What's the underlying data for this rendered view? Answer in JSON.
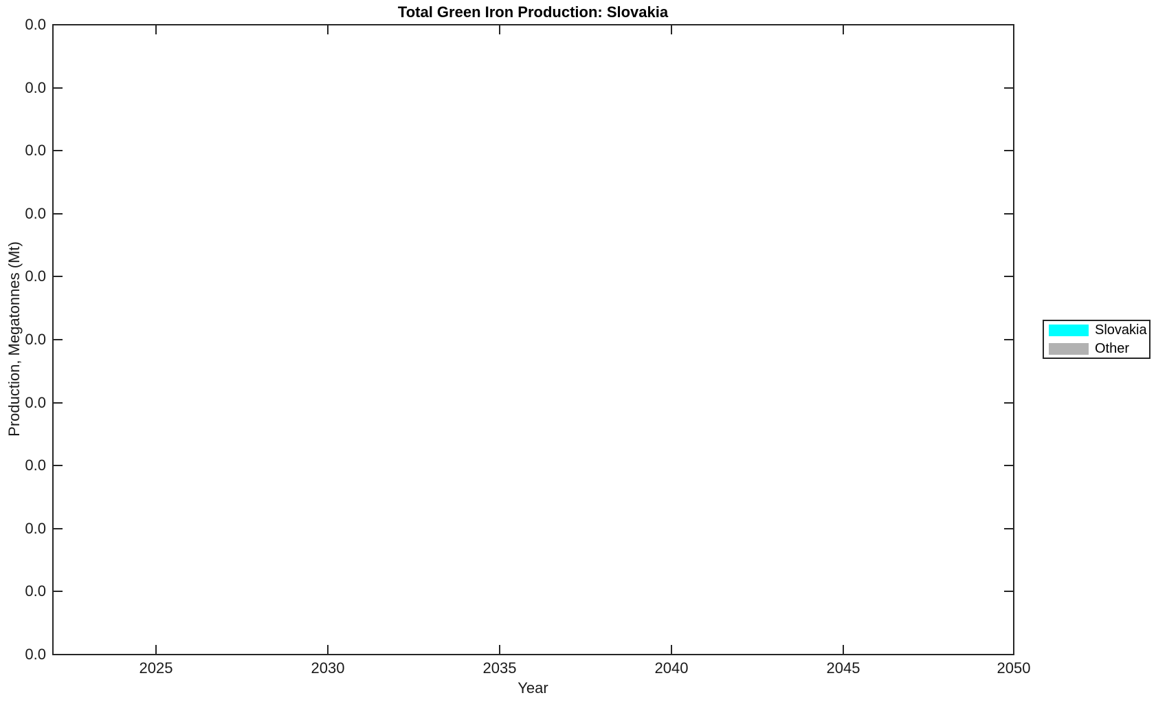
{
  "figure": {
    "title": "Total Green Iron Production: Slovakia",
    "xlabel": "Year",
    "ylabel": "Production, Megatonnes (Mt)",
    "background_color": "#FFFFFF",
    "axis_color": "#262626",
    "x_tick_labels": [
      "2025",
      "2030",
      "2035",
      "2040",
      "2045",
      "2050"
    ],
    "y_tick_labels": [
      "0.0",
      "0.0",
      "0.0",
      "0.0",
      "0.0",
      "0.0",
      "0.0",
      "0.0",
      "0.0",
      "0.0",
      "0.0"
    ],
    "legend": {
      "entries": [
        {
          "label": "Slovakia",
          "color": "#00FFFF"
        },
        {
          "label": "Other",
          "color": "#B2B2B2"
        }
      ]
    }
  },
  "chart_data": {
    "type": "area",
    "title": "Total Green Iron Production: Slovakia",
    "xlabel": "Year",
    "ylabel": "Production, Megatonnes (Mt)",
    "x_range": [
      2022,
      2050
    ],
    "x_ticks": [
      2025,
      2030,
      2035,
      2040,
      2045,
      2050
    ],
    "y_tick_labels": [
      "0.0",
      "0.0",
      "0.0",
      "0.0",
      "0.0",
      "0.0",
      "0.0",
      "0.0",
      "0.0",
      "0.0",
      "0.0"
    ],
    "grid": false,
    "legend_position": "right-outside",
    "series": [
      {
        "name": "Slovakia",
        "color": "#00FFFF",
        "x": [
          2025,
          2030,
          2035,
          2040,
          2045,
          2050
        ],
        "values": [
          0,
          0,
          0,
          0,
          0,
          0
        ]
      },
      {
        "name": "Other",
        "color": "#B2B2B2",
        "x": [
          2025,
          2030,
          2035,
          2040,
          2045,
          2050
        ],
        "values": [
          0,
          0,
          0,
          0,
          0,
          0
        ]
      }
    ]
  }
}
